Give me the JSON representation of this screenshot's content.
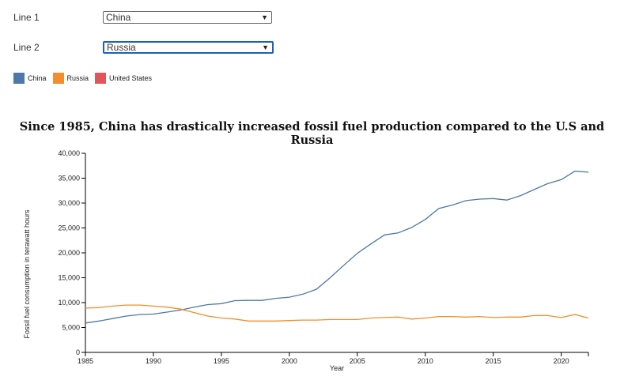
{
  "controls": {
    "line1": {
      "label": "Line 1",
      "selected": "China"
    },
    "line2": {
      "label": "Line 2",
      "selected": "Russia"
    }
  },
  "legend": [
    {
      "name": "China",
      "color": "#4e79a7"
    },
    {
      "name": "Russia",
      "color": "#f28e2b"
    },
    {
      "name": "United States",
      "color": "#e15759"
    }
  ],
  "chart_data": {
    "type": "line",
    "title": "Since 1985, China has drastically increased fossil fuel production compared to the U.S and Russia",
    "xlabel": "Year",
    "ylabel": "Fossil fuel consumption in terawatt hours",
    "xlim": [
      1985,
      2022
    ],
    "ylim": [
      0,
      40000
    ],
    "x_ticks": [
      "1985",
      "1990",
      "1995",
      "2000",
      "2005",
      "2010",
      "2015",
      "2020"
    ],
    "y_ticks": [
      "0",
      "5,000",
      "10,000",
      "15,000",
      "20,000",
      "25,000",
      "30,000",
      "35,000",
      "40,000"
    ],
    "x": [
      1985,
      1986,
      1987,
      1988,
      1989,
      1990,
      1991,
      1992,
      1993,
      1994,
      1995,
      1996,
      1997,
      1998,
      1999,
      2000,
      2001,
      2002,
      2003,
      2004,
      2005,
      2006,
      2007,
      2008,
      2009,
      2010,
      2011,
      2012,
      2013,
      2014,
      2015,
      2016,
      2017,
      2018,
      2019,
      2020,
      2021,
      2022
    ],
    "series": [
      {
        "name": "China",
        "color": "#4e79a7",
        "values": [
          5900,
          6300,
          6800,
          7300,
          7600,
          7700,
          8100,
          8500,
          9100,
          9600,
          9800,
          10400,
          10450,
          10450,
          10850,
          11100,
          11700,
          12700,
          15000,
          17500,
          19900,
          21800,
          23600,
          24000,
          25100,
          26700,
          28900,
          29600,
          30500,
          30800,
          30900,
          30600,
          31500,
          32700,
          33900,
          34700,
          36400,
          36200
        ]
      },
      {
        "name": "Russia",
        "color": "#f28e2b",
        "values": [
          8900,
          9000,
          9300,
          9500,
          9500,
          9300,
          9100,
          8700,
          8000,
          7300,
          6900,
          6700,
          6300,
          6300,
          6300,
          6400,
          6500,
          6500,
          6600,
          6600,
          6600,
          6900,
          7000,
          7100,
          6700,
          6900,
          7200,
          7200,
          7100,
          7200,
          7000,
          7100,
          7100,
          7400,
          7400,
          7000,
          7600,
          6900
        ]
      }
    ]
  }
}
